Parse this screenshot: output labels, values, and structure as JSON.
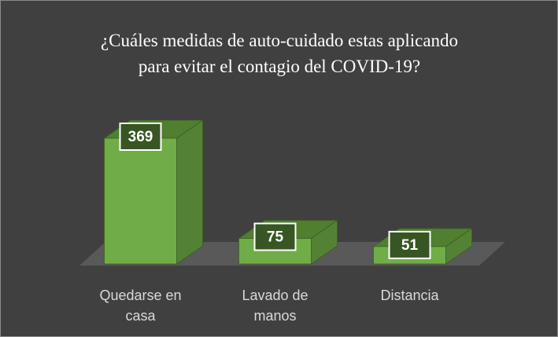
{
  "chart_data": {
    "type": "bar3d",
    "title": "¿Cuáles medidas de auto-cuidado estas aplicando\npara evitar el contagio del COVID-19?",
    "categories": [
      "Quedarse en casa",
      "Lavado de manos",
      "Distancia"
    ],
    "values": [
      369,
      75,
      51
    ],
    "color": "#70ad47"
  }
}
